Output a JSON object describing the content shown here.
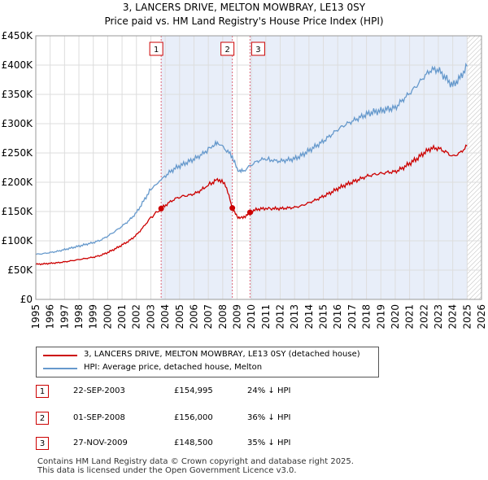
{
  "chart_data": {
    "type": "line",
    "title": "3, LANCERS DRIVE, MELTON MOWBRAY, LE13 0SY",
    "subtitle": "Price paid vs. HM Land Registry's House Price Index (HPI)",
    "y_ticks": [
      "£0",
      "£50K",
      "£100K",
      "£150K",
      "£200K",
      "£250K",
      "£300K",
      "£350K",
      "£400K",
      "£450K"
    ],
    "ylim": [
      0,
      450000
    ],
    "x_ticks": [
      "1995",
      "1996",
      "1997",
      "1998",
      "1999",
      "2000",
      "2001",
      "2002",
      "2003",
      "2004",
      "2005",
      "2006",
      "2007",
      "2008",
      "2009",
      "2010",
      "2011",
      "2012",
      "2013",
      "2014",
      "2015",
      "2016",
      "2017",
      "2018",
      "2019",
      "2020",
      "2021",
      "2022",
      "2023",
      "2024",
      "2025",
      "2026"
    ],
    "xlim": [
      1995,
      2026
    ],
    "series": [
      {
        "name": "3, LANCERS DRIVE, MELTON MOWBRAY, LE13 0SY (detached house)",
        "color": "#cc0000",
        "points": [
          [
            1995.0,
            60000
          ],
          [
            1995.5,
            60500
          ],
          [
            1996.0,
            61500
          ],
          [
            1996.5,
            62500
          ],
          [
            1997.0,
            64000
          ],
          [
            1997.5,
            66000
          ],
          [
            1998.0,
            68000
          ],
          [
            1998.5,
            70000
          ],
          [
            1999.0,
            72000
          ],
          [
            1999.5,
            75000
          ],
          [
            2000.0,
            80000
          ],
          [
            2000.5,
            86000
          ],
          [
            2001.0,
            93000
          ],
          [
            2001.5,
            100000
          ],
          [
            2002.0,
            110000
          ],
          [
            2002.5,
            124000
          ],
          [
            2003.0,
            140000
          ],
          [
            2003.72,
            154995
          ],
          [
            2004.2,
            164000
          ],
          [
            2004.7,
            172000
          ],
          [
            2005.2,
            176000
          ],
          [
            2005.7,
            178000
          ],
          [
            2006.2,
            182000
          ],
          [
            2006.7,
            190000
          ],
          [
            2007.3,
            200000
          ],
          [
            2007.7,
            205000
          ],
          [
            2008.2,
            196000
          ],
          [
            2008.67,
            156000
          ],
          [
            2009.0,
            141000
          ],
          [
            2009.4,
            139000
          ],
          [
            2009.9,
            148500
          ],
          [
            2010.4,
            154000
          ],
          [
            2010.9,
            155000
          ],
          [
            2011.5,
            155000
          ],
          [
            2012.0,
            155000
          ],
          [
            2012.5,
            156000
          ],
          [
            2013.0,
            157000
          ],
          [
            2013.5,
            160000
          ],
          [
            2014.0,
            165000
          ],
          [
            2014.5,
            170000
          ],
          [
            2015.0,
            176000
          ],
          [
            2015.5,
            182000
          ],
          [
            2016.0,
            189000
          ],
          [
            2016.5,
            195000
          ],
          [
            2017.0,
            200000
          ],
          [
            2017.5,
            205000
          ],
          [
            2018.0,
            210000
          ],
          [
            2018.5,
            213000
          ],
          [
            2019.0,
            215000
          ],
          [
            2019.5,
            217000
          ],
          [
            2020.0,
            218000
          ],
          [
            2020.5,
            224000
          ],
          [
            2021.0,
            232000
          ],
          [
            2021.5,
            240000
          ],
          [
            2022.0,
            250000
          ],
          [
            2022.5,
            258000
          ],
          [
            2023.0,
            258000
          ],
          [
            2023.5,
            252000
          ],
          [
            2024.0,
            244000
          ],
          [
            2024.5,
            250000
          ],
          [
            2025.0,
            262000
          ]
        ]
      },
      {
        "name": "HPI: Average price, detached house, Melton",
        "color": "#6699cc",
        "points": [
          [
            1995.0,
            77000
          ],
          [
            1995.5,
            78000
          ],
          [
            1996.0,
            80000
          ],
          [
            1996.5,
            82000
          ],
          [
            1997.0,
            85000
          ],
          [
            1997.5,
            88000
          ],
          [
            1998.0,
            91000
          ],
          [
            1998.5,
            94000
          ],
          [
            1999.0,
            97000
          ],
          [
            1999.5,
            101000
          ],
          [
            2000.0,
            108000
          ],
          [
            2000.5,
            116000
          ],
          [
            2001.0,
            125000
          ],
          [
            2001.5,
            135000
          ],
          [
            2002.0,
            148000
          ],
          [
            2002.5,
            168000
          ],
          [
            2003.0,
            188000
          ],
          [
            2003.72,
            204000
          ],
          [
            2004.2,
            215000
          ],
          [
            2004.7,
            224000
          ],
          [
            2005.2,
            230000
          ],
          [
            2005.7,
            236000
          ],
          [
            2006.2,
            242000
          ],
          [
            2006.7,
            250000
          ],
          [
            2007.3,
            262000
          ],
          [
            2007.7,
            267000
          ],
          [
            2008.2,
            256000
          ],
          [
            2008.67,
            244000
          ],
          [
            2009.0,
            222000
          ],
          [
            2009.4,
            218000
          ],
          [
            2009.9,
            228000
          ],
          [
            2010.4,
            236000
          ],
          [
            2010.9,
            240000
          ],
          [
            2011.5,
            237000
          ],
          [
            2012.0,
            236000
          ],
          [
            2012.5,
            238000
          ],
          [
            2013.0,
            240000
          ],
          [
            2013.5,
            246000
          ],
          [
            2014.0,
            254000
          ],
          [
            2014.5,
            262000
          ],
          [
            2015.0,
            270000
          ],
          [
            2015.5,
            280000
          ],
          [
            2016.0,
            290000
          ],
          [
            2016.5,
            298000
          ],
          [
            2017.0,
            304000
          ],
          [
            2017.5,
            310000
          ],
          [
            2018.0,
            316000
          ],
          [
            2018.5,
            320000
          ],
          [
            2019.0,
            322000
          ],
          [
            2019.5,
            325000
          ],
          [
            2020.0,
            327000
          ],
          [
            2020.5,
            340000
          ],
          [
            2021.0,
            352000
          ],
          [
            2021.5,
            365000
          ],
          [
            2022.0,
            380000
          ],
          [
            2022.5,
            392000
          ],
          [
            2023.0,
            392000
          ],
          [
            2023.5,
            378000
          ],
          [
            2024.0,
            365000
          ],
          [
            2024.5,
            378000
          ],
          [
            2025.0,
            398000
          ]
        ]
      }
    ],
    "markers": [
      {
        "label": "1",
        "x": 2003.72,
        "y": 154995
      },
      {
        "label": "2",
        "x": 2008.67,
        "y": 156000
      },
      {
        "label": "3",
        "x": 2009.9,
        "y": 148500
      }
    ],
    "shaded_ranges": [
      [
        2003.72,
        2008.67
      ],
      [
        2009.9,
        2025.0
      ]
    ],
    "hatch_from": 2025.0
  },
  "legend": {
    "red_label": "3, LANCERS DRIVE, MELTON MOWBRAY, LE13 0SY (detached house)",
    "blue_label": "HPI: Average price, detached house, Melton"
  },
  "transactions": [
    {
      "num": "1",
      "date": "22-SEP-2003",
      "price": "£154,995",
      "hpi": "24% ↓ HPI"
    },
    {
      "num": "2",
      "date": "01-SEP-2008",
      "price": "£156,000",
      "hpi": "36% ↓ HPI"
    },
    {
      "num": "3",
      "date": "27-NOV-2009",
      "price": "£148,500",
      "hpi": "35% ↓ HPI"
    }
  ],
  "footer": {
    "line1": "Contains HM Land Registry data © Crown copyright and database right 2025.",
    "line2": "This data is licensed under the Open Government Licence v3.0."
  }
}
